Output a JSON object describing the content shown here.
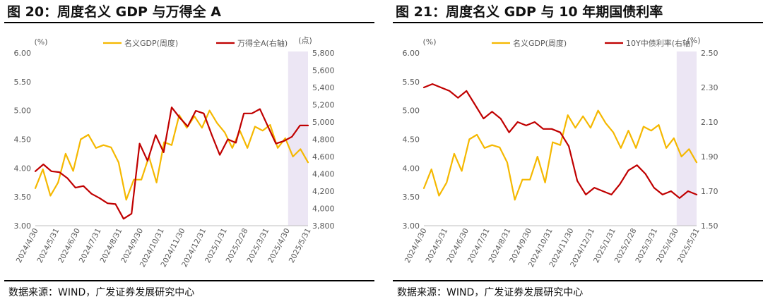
{
  "colors": {
    "nominal_gdp": "#f5b800",
    "second_series": "#c00000",
    "shade": "#ece6f4",
    "axis_text": "#595959"
  },
  "panels": [
    {
      "title": "图 20：周度名义 GDP 与万得全 A",
      "source": "数据来源：WIND，广发证券发展研究中心",
      "chart_data": {
        "type": "line",
        "left_axis": {
          "unit": "(%)",
          "ticks": [
            "3.00",
            "3.50",
            "4.00",
            "4.50",
            "5.00",
            "5.50",
            "6.00"
          ],
          "ylim": [
            3.0,
            6.0
          ]
        },
        "right_axis": {
          "unit": "(点)",
          "ticks": [
            "3,800",
            "4,000",
            "4,200",
            "4,400",
            "4,600",
            "4,800",
            "5,000",
            "5,200",
            "5,400",
            "5,600",
            "5,800"
          ],
          "ylim": [
            3800,
            5800
          ]
        },
        "x_labels": [
          "2024/4/30",
          "2024/5/31",
          "2024/6/30",
          "2024/7/31",
          "2024/8/31",
          "2024/9/30",
          "2024/10/31",
          "2024/11/30",
          "2024/12/31",
          "2025/1/31",
          "2025/2/28",
          "2025/3/31",
          "2025/4/30",
          "2025/5/31"
        ],
        "shaded_range": [
          "2025/4/30",
          "2025/5/31"
        ],
        "legend": [
          "名义GDP(周度)",
          "万得全A(右轴)"
        ],
        "series": [
          {
            "name": "名义GDP(周度)",
            "axis": "left",
            "values": [
              3.65,
              3.98,
              3.52,
              3.75,
              4.25,
              3.95,
              4.5,
              4.58,
              4.35,
              4.4,
              4.36,
              4.1,
              3.45,
              3.8,
              3.8,
              4.2,
              3.75,
              4.45,
              4.4,
              4.92,
              4.7,
              4.9,
              4.7,
              5.0,
              4.78,
              4.62,
              4.35,
              4.65,
              4.35,
              4.72,
              4.65,
              4.75,
              4.35,
              4.52,
              4.2,
              4.33,
              4.1
            ]
          },
          {
            "name": "万得全A(右轴)",
            "axis": "right",
            "values": [
              4430,
              4510,
              4430,
              4420,
              4350,
              4240,
              4260,
              4170,
              4120,
              4060,
              4050,
              3880,
              3940,
              4750,
              4550,
              4850,
              4650,
              5170,
              5050,
              4950,
              5130,
              5100,
              4850,
              4620,
              4800,
              4760,
              5100,
              5100,
              5150,
              4950,
              4750,
              4780,
              4830,
              4960,
              4960
            ]
          }
        ]
      }
    },
    {
      "title": "图 21：周度名义 GDP 与 10 年期国债利率",
      "source": "数据来源：WIND，广发证券发展研究中心",
      "chart_data": {
        "type": "line",
        "left_axis": {
          "unit": "(%)",
          "ticks": [
            "3.00",
            "3.50",
            "4.00",
            "4.50",
            "5.00",
            "5.50",
            "6.00"
          ],
          "ylim": [
            3.0,
            6.0
          ]
        },
        "right_axis": {
          "unit": "(%)",
          "ticks": [
            "1.50",
            "1.70",
            "1.90",
            "2.10",
            "2.30",
            "2.50"
          ],
          "ylim": [
            1.5,
            2.5
          ]
        },
        "x_labels": [
          "2024/4/30",
          "2024/5/31",
          "2024/6/30",
          "2024/7/31",
          "2024/8/31",
          "2024/9/30",
          "2024/10/31",
          "2024/11/30",
          "2024/12/31",
          "2025/1/31",
          "2025/2/28",
          "2025/3/31",
          "2025/4/30",
          "2025/5/31"
        ],
        "shaded_range": [
          "2025/4/30",
          "2025/5/31"
        ],
        "legend": [
          "名义GDP(周度)",
          "10Y中债利率(右轴)"
        ],
        "series": [
          {
            "name": "名义GDP(周度)",
            "axis": "left",
            "values": [
              3.65,
              3.98,
              3.52,
              3.75,
              4.25,
              3.95,
              4.5,
              4.58,
              4.35,
              4.4,
              4.36,
              4.1,
              3.45,
              3.8,
              3.8,
              4.2,
              3.75,
              4.45,
              4.4,
              4.92,
              4.7,
              4.9,
              4.7,
              5.0,
              4.78,
              4.62,
              4.35,
              4.65,
              4.35,
              4.72,
              4.65,
              4.75,
              4.35,
              4.52,
              4.2,
              4.33,
              4.1
            ]
          },
          {
            "name": "10Y中债利率(右轴)",
            "axis": "right",
            "values": [
              2.3,
              2.32,
              2.3,
              2.28,
              2.24,
              2.28,
              2.2,
              2.12,
              2.16,
              2.12,
              2.04,
              2.1,
              2.08,
              2.1,
              2.06,
              2.06,
              2.04,
              1.96,
              1.76,
              1.68,
              1.72,
              1.7,
              1.68,
              1.74,
              1.82,
              1.85,
              1.8,
              1.72,
              1.68,
              1.7,
              1.66,
              1.7,
              1.68
            ]
          }
        ]
      }
    }
  ]
}
